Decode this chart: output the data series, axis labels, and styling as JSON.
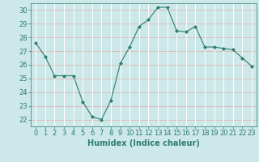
{
  "x": [
    0,
    1,
    2,
    3,
    4,
    5,
    6,
    7,
    8,
    9,
    10,
    11,
    12,
    13,
    14,
    15,
    16,
    17,
    18,
    19,
    20,
    21,
    22,
    23
  ],
  "y": [
    27.6,
    26.6,
    25.2,
    25.2,
    25.2,
    23.3,
    22.2,
    22.0,
    23.4,
    26.1,
    27.3,
    28.8,
    29.3,
    30.2,
    30.2,
    28.5,
    28.4,
    28.8,
    27.3,
    27.3,
    27.2,
    27.1,
    26.5,
    25.9
  ],
  "line_color": "#2e7d6e",
  "marker": "D",
  "marker_size": 2.0,
  "bg_color": "#cce8e8",
  "grid_color_h": "#ddbcbc",
  "grid_color_v": "#ffffff",
  "xlabel": "Humidex (Indice chaleur)",
  "ylim_min": 21.5,
  "ylim_max": 30.5,
  "xlim_min": -0.5,
  "xlim_max": 23.5,
  "yticks": [
    22,
    23,
    24,
    25,
    26,
    27,
    28,
    29,
    30
  ],
  "xticks": [
    0,
    1,
    2,
    3,
    4,
    5,
    6,
    7,
    8,
    9,
    10,
    11,
    12,
    13,
    14,
    15,
    16,
    17,
    18,
    19,
    20,
    21,
    22,
    23
  ],
  "tick_color": "#2e7d6e",
  "label_color": "#2e7d6e",
  "font_size": 6,
  "xlabel_fontsize": 7
}
